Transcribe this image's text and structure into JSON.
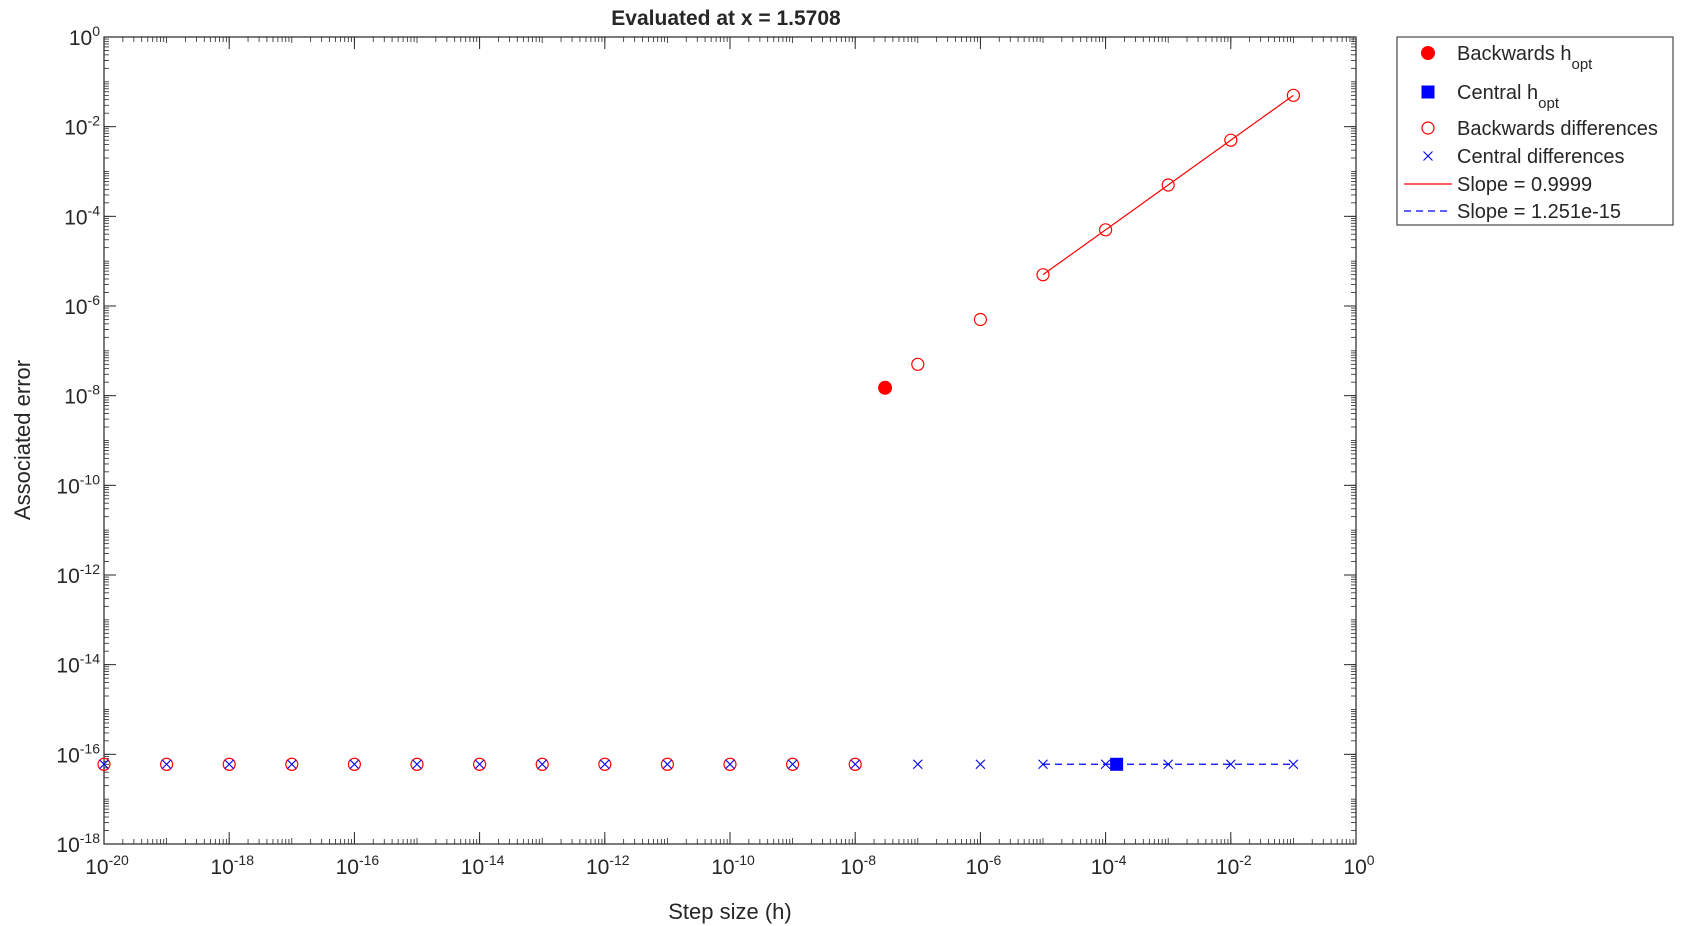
{
  "chart_data": {
    "type": "scatter",
    "title": "Evaluated at x = 1.5708",
    "xlabel": "Step size (h)",
    "ylabel": "Associated error",
    "xscale": "log",
    "yscale": "log",
    "xlim": [
      1e-20,
      1
    ],
    "ylim": [
      1e-18,
      1
    ],
    "grid": false,
    "legend_position": "outside-top-right",
    "x_ticks": [
      {
        "base": "10",
        "exp": "-20",
        "value": 1e-20
      },
      {
        "base": "10",
        "exp": "-18",
        "value": 1e-18
      },
      {
        "base": "10",
        "exp": "-16",
        "value": 1e-16
      },
      {
        "base": "10",
        "exp": "-14",
        "value": 1e-14
      },
      {
        "base": "10",
        "exp": "-12",
        "value": 1e-12
      },
      {
        "base": "10",
        "exp": "-10",
        "value": 1e-10
      },
      {
        "base": "10",
        "exp": "-8",
        "value": 1e-08
      },
      {
        "base": "10",
        "exp": "-6",
        "value": 1e-06
      },
      {
        "base": "10",
        "exp": "-4",
        "value": 0.0001
      },
      {
        "base": "10",
        "exp": "-2",
        "value": 0.01
      },
      {
        "base": "10",
        "exp": "0",
        "value": 1
      }
    ],
    "y_ticks": [
      {
        "base": "10",
        "exp": "-18",
        "value": 1e-18
      },
      {
        "base": "10",
        "exp": "-16",
        "value": 1e-16
      },
      {
        "base": "10",
        "exp": "-14",
        "value": 1e-14
      },
      {
        "base": "10",
        "exp": "-12",
        "value": 1e-12
      },
      {
        "base": "10",
        "exp": "-10",
        "value": 1e-10
      },
      {
        "base": "10",
        "exp": "-8",
        "value": 1e-08
      },
      {
        "base": "10",
        "exp": "-6",
        "value": 1e-06
      },
      {
        "base": "10",
        "exp": "-4",
        "value": 0.0001
      },
      {
        "base": "10",
        "exp": "-2",
        "value": 0.01
      },
      {
        "base": "10",
        "exp": "0",
        "value": 1
      }
    ],
    "series": [
      {
        "name": "Backwards h",
        "name_sub": "opt",
        "marker": "filled-circle",
        "color": "#ff0000",
        "points": [
          [
            3e-08,
            1.5e-08
          ]
        ]
      },
      {
        "name": "Central h",
        "name_sub": "opt",
        "marker": "filled-square",
        "color": "#0000ff",
        "points": [
          [
            0.00015,
            6e-17
          ]
        ]
      },
      {
        "name": "Backwards differences",
        "marker": "open-circle",
        "color": "#ff0000",
        "points": [
          [
            1e-20,
            6e-17
          ],
          [
            1e-19,
            6e-17
          ],
          [
            1e-18,
            6e-17
          ],
          [
            1e-17,
            6e-17
          ],
          [
            1e-16,
            6e-17
          ],
          [
            1e-15,
            6e-17
          ],
          [
            1e-14,
            6e-17
          ],
          [
            1e-13,
            6e-17
          ],
          [
            1e-12,
            6e-17
          ],
          [
            1e-11,
            6e-17
          ],
          [
            1e-10,
            6e-17
          ],
          [
            1e-09,
            6e-17
          ],
          [
            1e-08,
            6e-17
          ],
          [
            1e-07,
            5e-08
          ],
          [
            1e-06,
            5e-07
          ],
          [
            1e-05,
            5e-06
          ],
          [
            0.0001,
            5e-05
          ],
          [
            0.001,
            0.0005
          ],
          [
            0.01,
            0.005
          ],
          [
            0.1,
            0.05
          ]
        ]
      },
      {
        "name": "Central differences",
        "marker": "x",
        "color": "#0000ff",
        "points": [
          [
            1e-20,
            6e-17
          ],
          [
            1e-19,
            6e-17
          ],
          [
            1e-18,
            6e-17
          ],
          [
            1e-17,
            6e-17
          ],
          [
            1e-16,
            6e-17
          ],
          [
            1e-15,
            6e-17
          ],
          [
            1e-14,
            6e-17
          ],
          [
            1e-13,
            6e-17
          ],
          [
            1e-12,
            6e-17
          ],
          [
            1e-11,
            6e-17
          ],
          [
            1e-10,
            6e-17
          ],
          [
            1e-09,
            6e-17
          ],
          [
            1e-08,
            6e-17
          ],
          [
            1e-07,
            6e-17
          ],
          [
            1e-06,
            6e-17
          ],
          [
            1e-05,
            6e-17
          ],
          [
            0.0001,
            6e-17
          ],
          [
            0.001,
            6e-17
          ],
          [
            0.01,
            6e-17
          ],
          [
            0.1,
            6e-17
          ]
        ]
      },
      {
        "name": "Slope = 0.9999",
        "marker": "solid-line",
        "color": "#ff0000",
        "points": [
          [
            1e-05,
            5e-06
          ],
          [
            0.1,
            0.05
          ]
        ]
      },
      {
        "name": "Slope = 1.251e-15",
        "marker": "dashed-line",
        "color": "#0000ff",
        "points": [
          [
            1e-05,
            6e-17
          ],
          [
            0.1,
            6e-17
          ]
        ]
      }
    ]
  }
}
